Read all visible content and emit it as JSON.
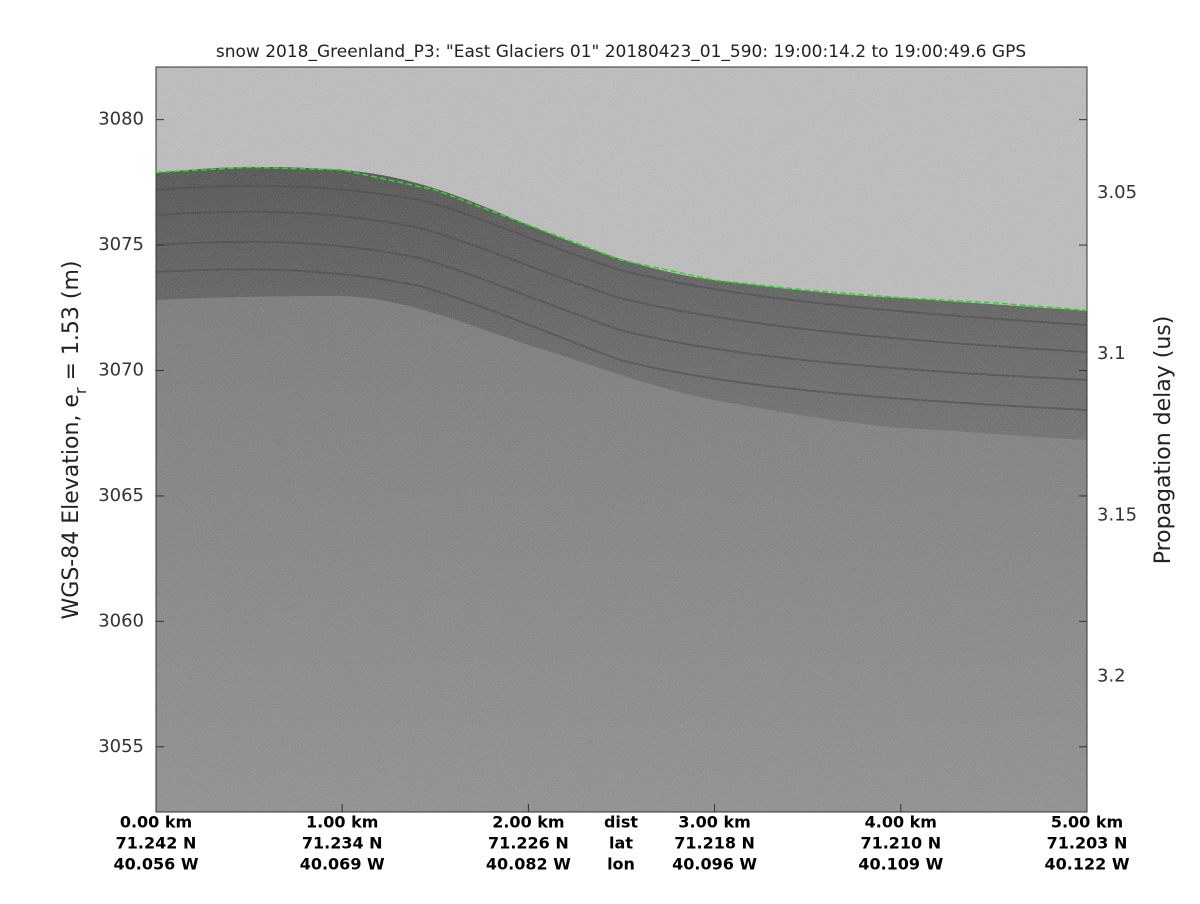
{
  "chart_data": {
    "type": "echogram",
    "title": "snow 2018_Greenland_P3: \"East Glaciers 01\"  20180423_01_590: 19:00:14.2 to 19:00:49.6 GPS",
    "y_label": "WGS-84 Elevation, e",
    "y_label_sub": "r",
    "y_label_tail": " = 1.53 (m)",
    "y2_label": "Propagation delay (us)",
    "row_labels": [
      "dist",
      "lat",
      "lon"
    ],
    "xlim": [
      0,
      5
    ],
    "xticks": [
      {
        "value": 0,
        "label": "0.00 km"
      },
      {
        "value": 1,
        "label": "1.00 km"
      },
      {
        "value": 2,
        "label": "2.00 km"
      },
      {
        "value": 3,
        "label": "3.00 km"
      },
      {
        "value": 4,
        "label": "4.00 km"
      },
      {
        "value": 5,
        "label": "5.00 km"
      }
    ],
    "lat_labels": [
      "71.242 N",
      "71.234 N",
      "71.226 N",
      "71.218 N",
      "71.210 N",
      "71.203 N"
    ],
    "lon_labels": [
      "40.056 W",
      "40.069 W",
      "40.082 W",
      "40.096 W",
      "40.109 W",
      "40.122 W"
    ],
    "ylim": [
      3052.4,
      3082.1
    ],
    "yticks": [
      3055,
      3060,
      3065,
      3070,
      3075,
      3080
    ],
    "y2lim": [
      3.011,
      3.242
    ],
    "y2_reversed": true,
    "y2ticks": [
      3.05,
      3.1,
      3.15,
      3.2
    ],
    "series": [
      {
        "name": "surface",
        "color": "#22dd22",
        "x": [
          0,
          0.5,
          1,
          1.5,
          2,
          2.5,
          3,
          3.5,
          4,
          4.5,
          5
        ],
        "values": [
          3077.9,
          3078.1,
          3078.0,
          3077.2,
          3075.8,
          3074.4,
          3073.6,
          3073.2,
          3072.9,
          3072.7,
          3072.4
        ]
      }
    ]
  }
}
